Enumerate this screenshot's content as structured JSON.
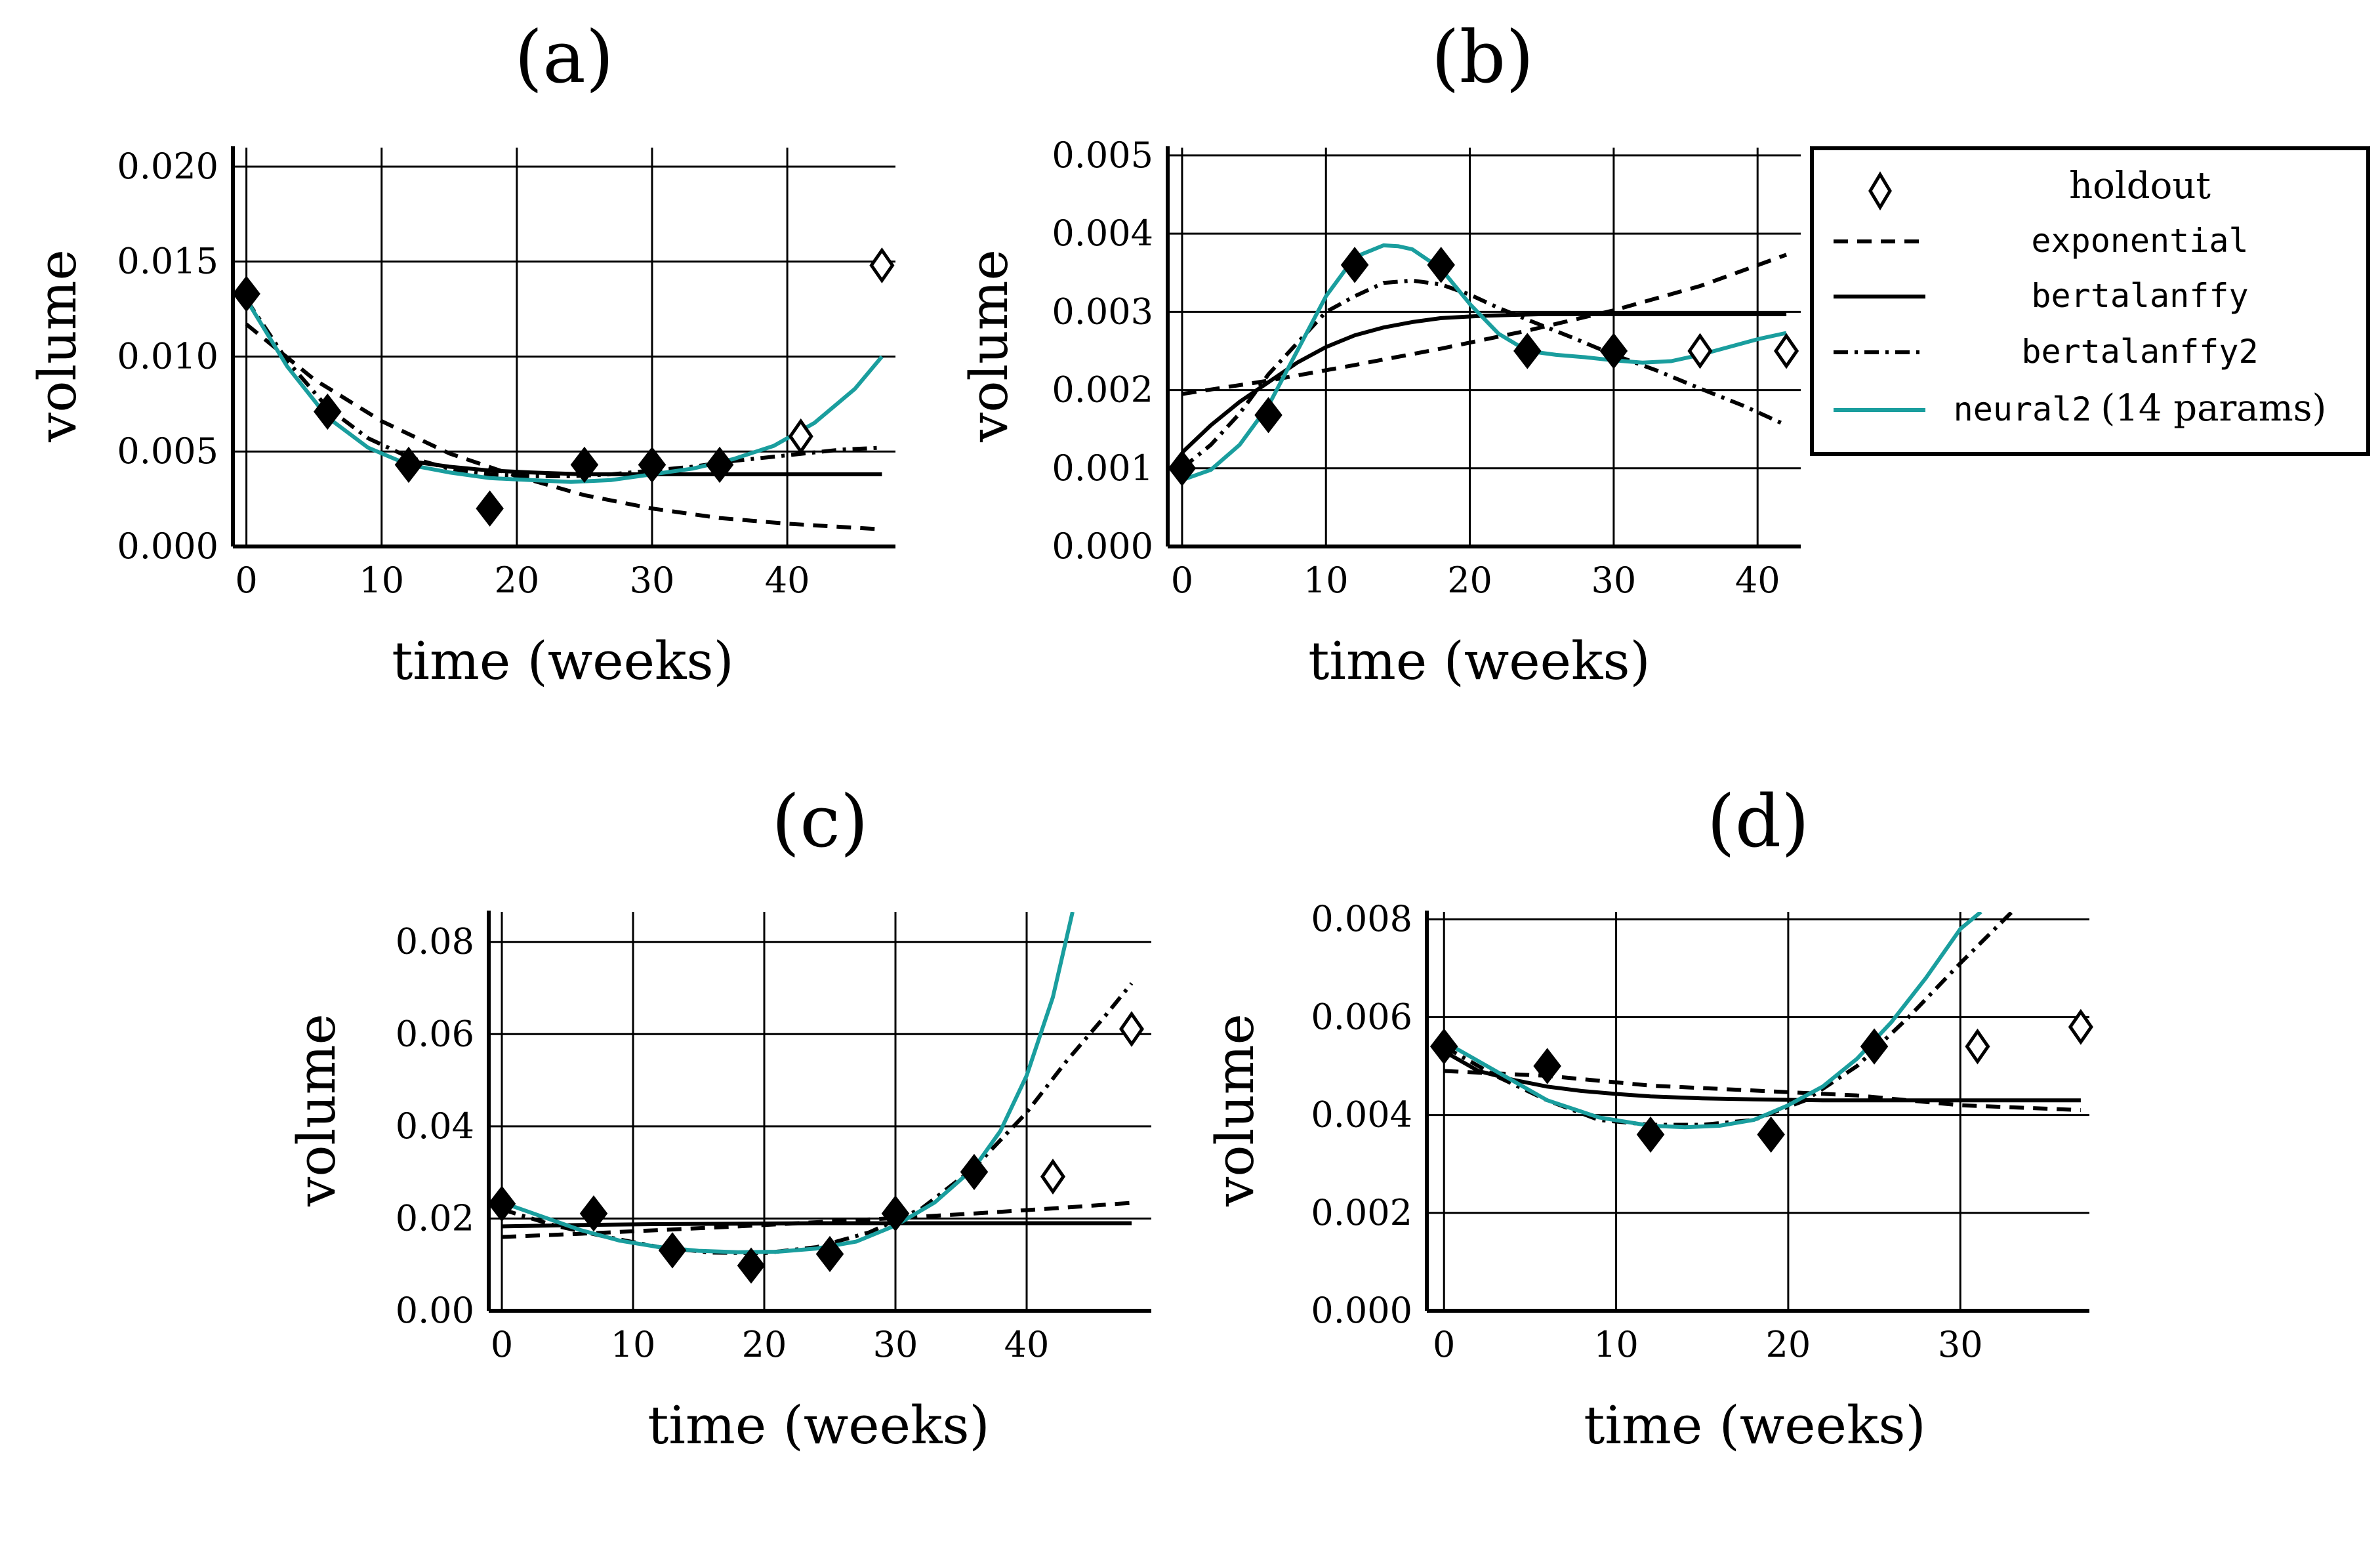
{
  "colors": {
    "neural": "#1a9e9e",
    "black": "#000000"
  },
  "legend": {
    "holdout": "holdout",
    "exponential": "exponential",
    "bertalanffy": "bertalanffy",
    "bertalanffy2": "bertalanffy2",
    "neural2_name": "neural2",
    "neural2_params": "(14 params)"
  },
  "chart_data": [
    {
      "title": "(a)",
      "type": "line",
      "xlabel": "time (weeks)",
      "ylabel": "volume",
      "xlim": [
        -1,
        48
      ],
      "ylim": [
        0,
        0.021
      ],
      "xticks": [
        0,
        10,
        20,
        30,
        40
      ],
      "yticks": [
        0,
        0.005,
        0.01,
        0.015,
        0.02
      ],
      "ytick_labels": [
        "0.000",
        "0.005",
        "0.010",
        "0.015",
        "0.020"
      ],
      "grid": true,
      "observed": {
        "x": [
          0,
          6,
          12,
          18,
          25,
          30,
          35
        ],
        "y": [
          0.0133,
          0.0071,
          0.0043,
          0.002,
          0.0043,
          0.0043,
          0.0043
        ]
      },
      "holdout": {
        "x": [
          41,
          47
        ],
        "y": [
          0.0058,
          0.0148
        ]
      },
      "curves": {
        "exponential": {
          "x": [
            0,
            5,
            10,
            15,
            20,
            25,
            30,
            35,
            40,
            47
          ],
          "y": [
            0.0117,
            0.0088,
            0.0066,
            0.0049,
            0.0037,
            0.0027,
            0.002,
            0.0015,
            0.0012,
            0.0009
          ]
        },
        "bertalanffy": {
          "x": [
            12,
            15,
            18,
            21,
            25,
            30,
            35,
            40,
            47
          ],
          "y": [
            0.0045,
            0.0042,
            0.004,
            0.0039,
            0.0038,
            0.0038,
            0.0038,
            0.0038,
            0.0038
          ]
        },
        "bertalanffy2": {
          "x": [
            0,
            3,
            6,
            9,
            12,
            15,
            18,
            21,
            24,
            27,
            30,
            33,
            36,
            40,
            44,
            47
          ],
          "y": [
            0.013,
            0.0098,
            0.0073,
            0.0057,
            0.0047,
            0.0041,
            0.0038,
            0.0037,
            0.0037,
            0.0038,
            0.004,
            0.0042,
            0.0045,
            0.0048,
            0.0051,
            0.0052
          ]
        },
        "neural2": {
          "x": [
            0,
            3,
            6,
            9,
            12,
            15,
            18,
            21,
            24,
            27,
            30,
            33,
            36,
            39,
            42,
            45,
            47
          ],
          "y": [
            0.013,
            0.0095,
            0.0068,
            0.0052,
            0.0043,
            0.0039,
            0.0036,
            0.0035,
            0.0034,
            0.0035,
            0.0038,
            0.0041,
            0.0046,
            0.0053,
            0.0065,
            0.0083,
            0.01
          ]
        }
      }
    },
    {
      "title": "(b)",
      "type": "line",
      "xlabel": "time (weeks)",
      "ylabel": "volume",
      "xlim": [
        -1,
        43
      ],
      "ylim": [
        0,
        0.0051
      ],
      "xticks": [
        0,
        10,
        20,
        30,
        40
      ],
      "yticks": [
        0,
        0.001,
        0.002,
        0.003,
        0.004,
        0.005
      ],
      "ytick_labels": [
        "0.000",
        "0.001",
        "0.002",
        "0.003",
        "0.004",
        "0.005"
      ],
      "grid": true,
      "observed": {
        "x": [
          0,
          6,
          12,
          18,
          24,
          30
        ],
        "y": [
          0.001,
          0.00168,
          0.0036,
          0.0036,
          0.0025,
          0.0025
        ]
      },
      "holdout": {
        "x": [
          36,
          42
        ],
        "y": [
          0.0025,
          0.0025
        ]
      },
      "curves": {
        "exponential": {
          "x": [
            0,
            6,
            12,
            18,
            24,
            30,
            36,
            42
          ],
          "y": [
            0.00195,
            0.00212,
            0.00232,
            0.00253,
            0.00276,
            0.00302,
            0.00333,
            0.00373
          ]
        },
        "bertalanffy": {
          "x": [
            0,
            2,
            4,
            6,
            8,
            10,
            12,
            14,
            16,
            18,
            21,
            25,
            30,
            36,
            42
          ],
          "y": [
            0.0012,
            0.00155,
            0.00185,
            0.0021,
            0.00235,
            0.00255,
            0.0027,
            0.0028,
            0.00287,
            0.00292,
            0.00295,
            0.00297,
            0.00297,
            0.00297,
            0.00297
          ]
        },
        "bertalanffy2": {
          "x": [
            0,
            2,
            4,
            6,
            8,
            10,
            12,
            14,
            16,
            18,
            20,
            22,
            24,
            27,
            30,
            33,
            36,
            39,
            42
          ],
          "y": [
            0.001,
            0.0013,
            0.0017,
            0.0022,
            0.0026,
            0.003,
            0.0032,
            0.00337,
            0.0034,
            0.00335,
            0.00322,
            0.00305,
            0.0029,
            0.00268,
            0.00245,
            0.00225,
            0.00202,
            0.0018,
            0.00155
          ]
        },
        "neural2": {
          "x": [
            0,
            2,
            4,
            6,
            8,
            10,
            12,
            14,
            15,
            16,
            18,
            20,
            22,
            24,
            26,
            28,
            30,
            32,
            34,
            36,
            38,
            40,
            42
          ],
          "y": [
            0.00085,
            0.00098,
            0.0013,
            0.0018,
            0.0025,
            0.0032,
            0.0037,
            0.00385,
            0.00384,
            0.0038,
            0.00355,
            0.0031,
            0.00272,
            0.0025,
            0.00245,
            0.00242,
            0.00238,
            0.00235,
            0.00237,
            0.00245,
            0.00255,
            0.00265,
            0.00273
          ]
        }
      }
    },
    {
      "title": "(c)",
      "type": "line",
      "xlabel": "time (weeks)",
      "ylabel": "volume",
      "xlim": [
        -1,
        49.5
      ],
      "ylim": [
        0,
        0.0865
      ],
      "xticks": [
        0,
        10,
        20,
        30,
        40
      ],
      "yticks": [
        0,
        0.02,
        0.04,
        0.06,
        0.08
      ],
      "ytick_labels": [
        "0.00",
        "0.02",
        "0.04",
        "0.06",
        "0.08"
      ],
      "grid": true,
      "observed": {
        "x": [
          0,
          7,
          13,
          19,
          25,
          30,
          36
        ],
        "y": [
          0.0232,
          0.0211,
          0.0131,
          0.0098,
          0.0123,
          0.0211,
          0.0301
        ]
      },
      "holdout": {
        "x": [
          42,
          48
        ],
        "y": [
          0.0291,
          0.0611
        ]
      },
      "curves": {
        "exponential": {
          "x": [
            0,
            6,
            12,
            18,
            24,
            30,
            36,
            42,
            48
          ],
          "y": [
            0.016,
            0.0167,
            0.0175,
            0.0183,
            0.0192,
            0.0201,
            0.0211,
            0.0222,
            0.0234
          ]
        },
        "bertalanffy": {
          "x": [
            0,
            6,
            12,
            18,
            24,
            30,
            36,
            42,
            48
          ],
          "y": [
            0.0183,
            0.0186,
            0.0188,
            0.0189,
            0.019,
            0.019,
            0.019,
            0.019,
            0.019
          ]
        },
        "bertalanffy2": {
          "x": [
            0,
            4,
            8,
            12,
            16,
            20,
            24,
            28,
            32,
            36,
            40,
            43,
            46,
            48
          ],
          "y": [
            0.022,
            0.0185,
            0.016,
            0.0138,
            0.0126,
            0.0125,
            0.0138,
            0.017,
            0.0222,
            0.031,
            0.043,
            0.054,
            0.064,
            0.071
          ]
        },
        "neural2": {
          "x": [
            0,
            3,
            6,
            9,
            12,
            15,
            18,
            21,
            24,
            27,
            30,
            33,
            36,
            38,
            40,
            42,
            43.5
          ],
          "y": [
            0.0235,
            0.0205,
            0.0175,
            0.0152,
            0.0138,
            0.013,
            0.0127,
            0.0128,
            0.0135,
            0.015,
            0.0185,
            0.0235,
            0.031,
            0.039,
            0.051,
            0.068,
            0.0865
          ]
        }
      }
    },
    {
      "title": "(d)",
      "type": "line",
      "xlabel": "time (weeks)",
      "ylabel": "volume",
      "xlim": [
        -1,
        37.5
      ],
      "ylim": [
        0,
        0.00815
      ],
      "xticks": [
        0,
        10,
        20,
        30
      ],
      "yticks": [
        0,
        0.002,
        0.004,
        0.006,
        0.008
      ],
      "ytick_labels": [
        "0.000",
        "0.002",
        "0.004",
        "0.006",
        "0.008"
      ],
      "grid": true,
      "observed": {
        "x": [
          0,
          6,
          12,
          19,
          25
        ],
        "y": [
          0.0054,
          0.005,
          0.0036,
          0.0036,
          0.0054
        ]
      },
      "holdout": {
        "x": [
          31,
          37
        ],
        "y": [
          0.0054,
          0.0058
        ]
      },
      "curves": {
        "exponential": {
          "x": [
            0,
            6,
            12,
            18,
            24,
            30,
            37
          ],
          "y": [
            0.0049,
            0.0048,
            0.0046,
            0.0045,
            0.0044,
            0.0042,
            0.0041
          ]
        },
        "bertalanffy": {
          "x": [
            0,
            2,
            4,
            6,
            8,
            10,
            12,
            15,
            18,
            22,
            26,
            30,
            37
          ],
          "y": [
            0.0053,
            0.0049,
            0.00472,
            0.00458,
            0.00449,
            0.00443,
            0.00438,
            0.00434,
            0.00432,
            0.0043,
            0.0043,
            0.0043,
            0.0043
          ]
        },
        "bertalanffy2": {
          "x": [
            0,
            3,
            6,
            9,
            12,
            15,
            18,
            21,
            24,
            27,
            30,
            33
          ],
          "y": [
            0.0054,
            0.0048,
            0.0043,
            0.0039,
            0.0038,
            0.0038,
            0.0039,
            0.0043,
            0.005,
            0.006,
            0.0071,
            0.00815
          ]
        },
        "neural2": {
          "x": [
            0,
            3,
            6,
            9,
            12,
            14,
            16,
            18,
            20,
            22,
            24,
            26,
            28,
            30,
            31.2
          ],
          "y": [
            0.0055,
            0.0049,
            0.0043,
            0.00395,
            0.00378,
            0.00375,
            0.00378,
            0.0039,
            0.0042,
            0.00458,
            0.00515,
            0.0059,
            0.0068,
            0.0078,
            0.00815
          ]
        }
      }
    }
  ]
}
